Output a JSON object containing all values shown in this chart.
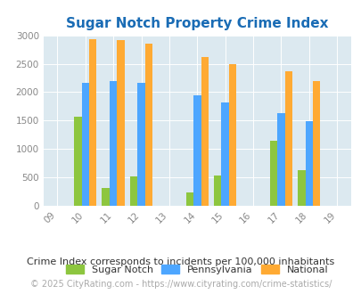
{
  "title": "Sugar Notch Property Crime Index",
  "years": [
    2009,
    2010,
    2011,
    2012,
    2013,
    2014,
    2015,
    2016,
    2017,
    2018,
    2019
  ],
  "xtick_labels": [
    "09",
    "10",
    "11",
    "12",
    "13",
    "14",
    "15",
    "16",
    "17",
    "18",
    "19"
  ],
  "data_years": [
    2010,
    2011,
    2012,
    2014,
    2015,
    2017,
    2018
  ],
  "sugar_notch": [
    1560,
    310,
    510,
    230,
    530,
    1140,
    630
  ],
  "pennsylvania": [
    2170,
    2200,
    2160,
    1950,
    1820,
    1630,
    1490
  ],
  "national": [
    2930,
    2910,
    2860,
    2610,
    2500,
    2360,
    2190
  ],
  "color_sugar_notch": "#8dc63f",
  "color_pennsylvania": "#4da6ff",
  "color_national": "#ffaa33",
  "bg_color": "#dce9f0",
  "ylim": [
    0,
    3000
  ],
  "yticks": [
    0,
    500,
    1000,
    1500,
    2000,
    2500,
    3000
  ],
  "bar_width": 0.27,
  "subtitle": "Crime Index corresponds to incidents per 100,000 inhabitants",
  "footer": "© 2025 CityRating.com - https://www.cityrating.com/crime-statistics/",
  "legend_labels": [
    "Sugar Notch",
    "Pennsylvania",
    "National"
  ],
  "tick_fontsize": 7.5,
  "title_fontsize": 11,
  "subtitle_fontsize": 8,
  "footer_fontsize": 7,
  "legend_fontsize": 8
}
